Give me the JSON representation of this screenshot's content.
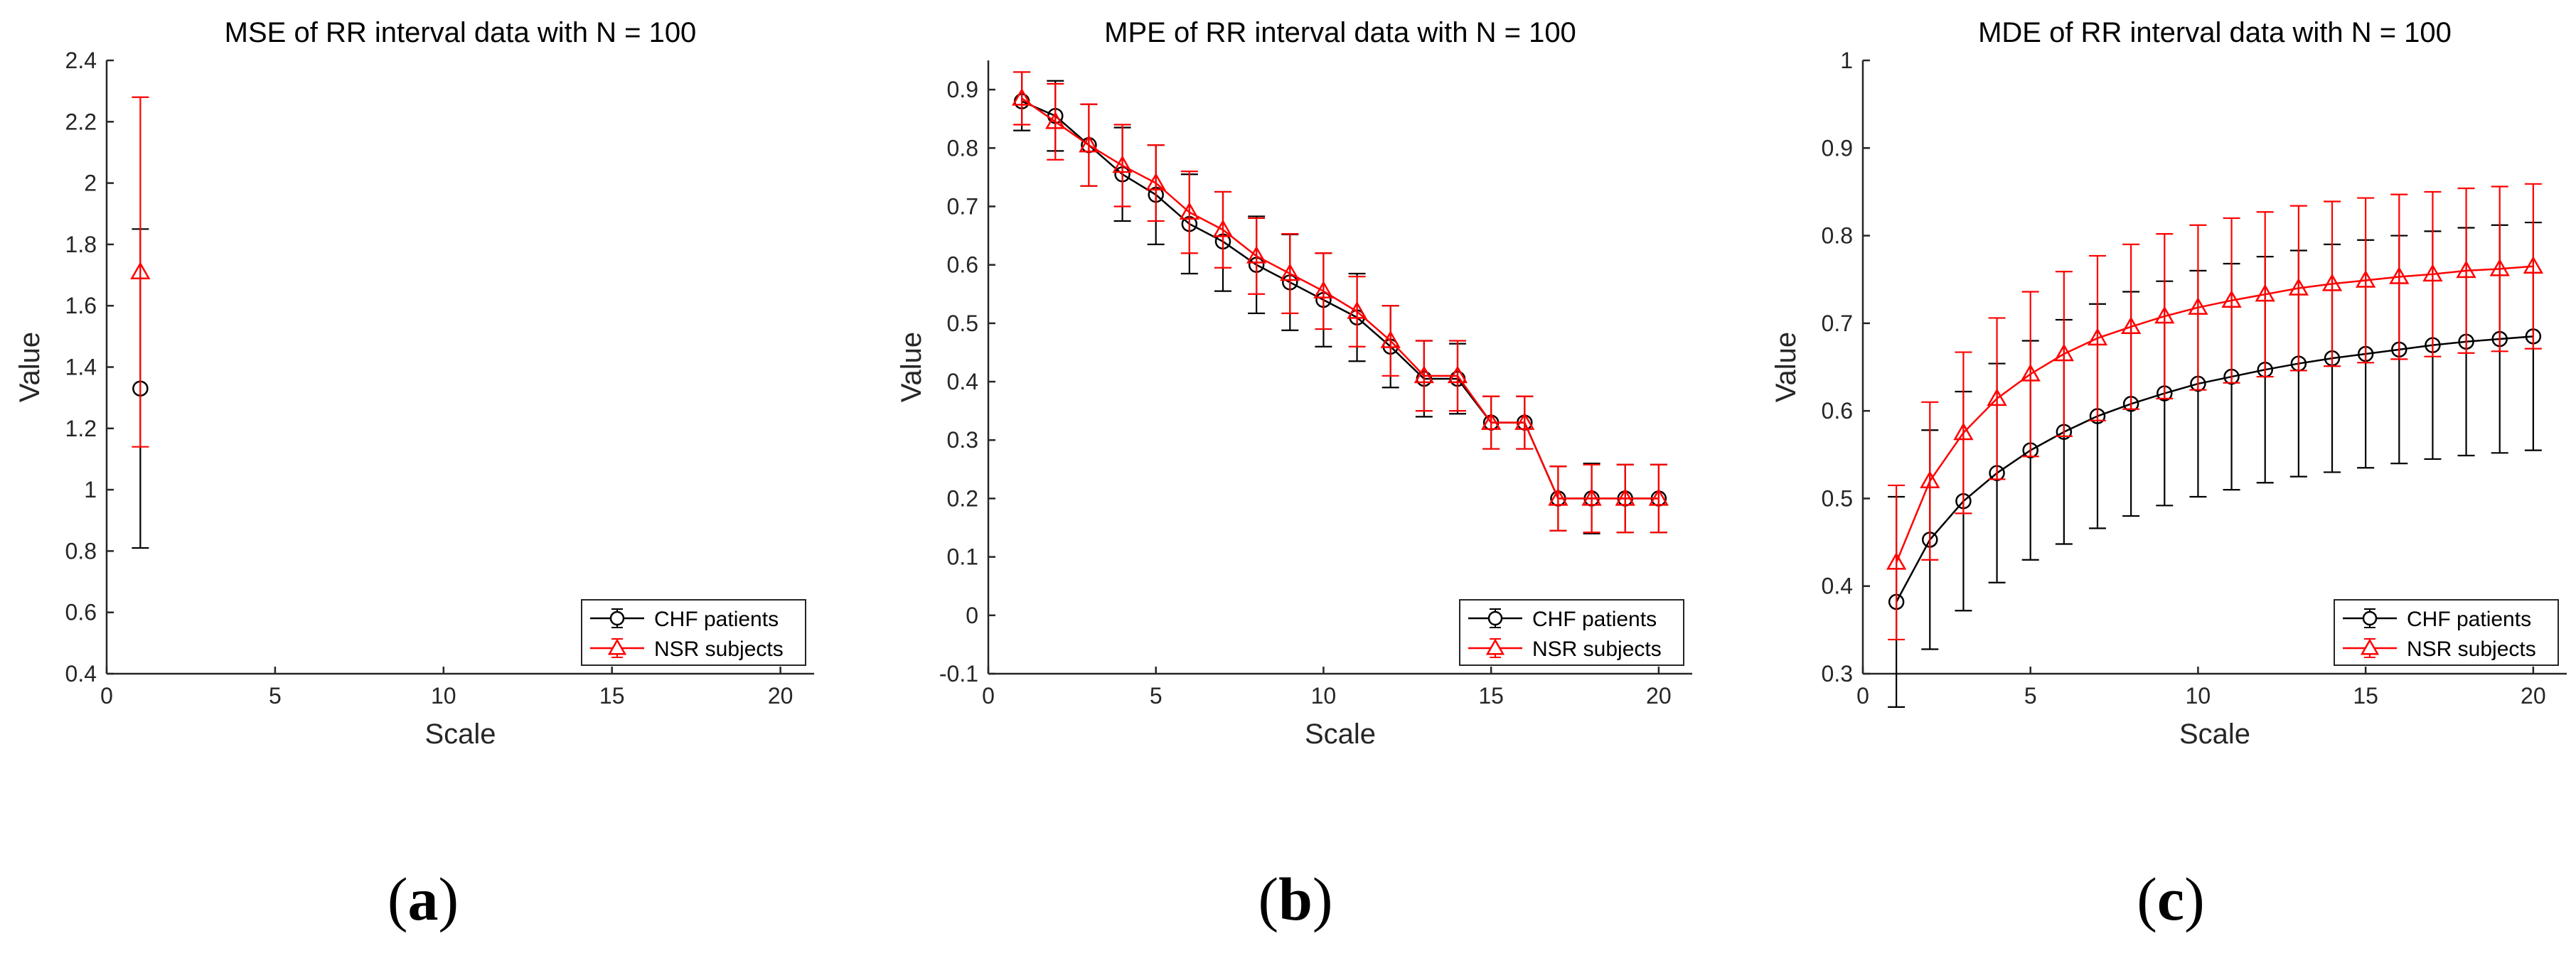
{
  "chart_data": [
    {
      "type": "line",
      "title": "MSE of RR interval data with N = 100",
      "xlabel": "Scale",
      "ylabel": "Value",
      "xlim": [
        0,
        21
      ],
      "ylim": [
        0.4,
        2.4
      ],
      "xticks": [
        0,
        5,
        10,
        15,
        20
      ],
      "xtick_labels": [
        "0",
        "5",
        "10",
        "15",
        "20"
      ],
      "yticks": [
        0.4,
        0.6,
        0.8,
        1,
        1.2,
        1.4,
        1.6,
        1.8,
        2,
        2.2,
        2.4
      ],
      "ytick_labels": [
        "0.4",
        "0.6",
        "0.8",
        "1",
        "1.2",
        "1.4",
        "1.6",
        "1.8",
        "2",
        "2.2",
        "2.4"
      ],
      "legend_position": "bottom-right",
      "series": [
        {
          "name": "CHF patients",
          "color": "#000000",
          "marker": "circle",
          "x": [
            1
          ],
          "values": [
            1.33
          ],
          "err": [
            0.52
          ]
        },
        {
          "name": "NSR subjects",
          "color": "#ff0000",
          "marker": "triangle",
          "x": [
            1
          ],
          "values": [
            1.71
          ],
          "err": [
            0.57
          ]
        }
      ],
      "sub_label": {
        "open": "(",
        "letter": "a",
        "close": ")"
      }
    },
    {
      "type": "line",
      "title": "MPE of RR interval data with N = 100",
      "xlabel": "Scale",
      "ylabel": "Value",
      "xlim": [
        0,
        21
      ],
      "ylim": [
        -0.1,
        0.95
      ],
      "xticks": [
        0,
        5,
        10,
        15,
        20
      ],
      "xtick_labels": [
        "0",
        "5",
        "10",
        "15",
        "20"
      ],
      "yticks": [
        -0.1,
        0,
        0.1,
        0.2,
        0.3,
        0.4,
        0.5,
        0.6,
        0.7,
        0.8,
        0.9
      ],
      "ytick_labels": [
        "-0.1",
        "0",
        "0.1",
        "0.2",
        "0.3",
        "0.4",
        "0.5",
        "0.6",
        "0.7",
        "0.8",
        "0.9"
      ],
      "legend_position": "bottom-right",
      "series": [
        {
          "name": "CHF patients",
          "color": "#000000",
          "marker": "circle",
          "x": [
            1,
            2,
            3,
            4,
            5,
            6,
            7,
            8,
            9,
            10,
            11,
            12,
            13,
            14,
            15,
            16,
            17,
            18,
            19,
            20
          ],
          "values": [
            0.88,
            0.855,
            0.805,
            0.755,
            0.72,
            0.67,
            0.64,
            0.6,
            0.57,
            0.54,
            0.51,
            0.46,
            0.405,
            0.405,
            0.33,
            0.33,
            0.2,
            0.2,
            0.2,
            0.2
          ],
          "err": [
            0.05,
            0.06,
            0.07,
            0.08,
            0.085,
            0.085,
            0.085,
            0.083,
            0.082,
            0.08,
            0.075,
            0.07,
            0.065,
            0.06,
            0.045,
            0.045,
            0.055,
            0.06,
            0.058,
            0.058
          ]
        },
        {
          "name": "NSR subjects",
          "color": "#ff0000",
          "marker": "triangle",
          "x": [
            1,
            2,
            3,
            4,
            5,
            6,
            7,
            8,
            9,
            10,
            11,
            12,
            13,
            14,
            15,
            16,
            17,
            18,
            19,
            20
          ],
          "values": [
            0.885,
            0.845,
            0.805,
            0.77,
            0.74,
            0.69,
            0.66,
            0.615,
            0.585,
            0.555,
            0.52,
            0.47,
            0.41,
            0.41,
            0.33,
            0.33,
            0.2,
            0.2,
            0.2,
            0.2
          ],
          "err": [
            0.045,
            0.065,
            0.07,
            0.07,
            0.065,
            0.07,
            0.065,
            0.065,
            0.068,
            0.065,
            0.06,
            0.06,
            0.06,
            0.06,
            0.045,
            0.045,
            0.055,
            0.058,
            0.058,
            0.058
          ]
        }
      ],
      "sub_label": {
        "open": "(",
        "letter": "b",
        "close": ")"
      }
    },
    {
      "type": "line",
      "title": "MDE of RR interval data with N = 100",
      "xlabel": "Scale",
      "ylabel": "Value",
      "xlim": [
        0,
        21
      ],
      "ylim": [
        0.3,
        1.0
      ],
      "xticks": [
        0,
        5,
        10,
        15,
        20
      ],
      "xtick_labels": [
        "0",
        "5",
        "10",
        "15",
        "20"
      ],
      "yticks": [
        0.3,
        0.4,
        0.5,
        0.6,
        0.7,
        0.8,
        0.9,
        1
      ],
      "ytick_labels": [
        "0.3",
        "0.4",
        "0.5",
        "0.6",
        "0.7",
        "0.8",
        "0.9",
        "1"
      ],
      "legend_position": "bottom-right",
      "series": [
        {
          "name": "CHF patients",
          "color": "#000000",
          "marker": "circle",
          "x": [
            1,
            2,
            3,
            4,
            5,
            6,
            7,
            8,
            9,
            10,
            11,
            12,
            13,
            14,
            15,
            16,
            17,
            18,
            19,
            20
          ],
          "values": [
            0.382,
            0.453,
            0.497,
            0.529,
            0.555,
            0.576,
            0.594,
            0.608,
            0.62,
            0.631,
            0.639,
            0.647,
            0.654,
            0.66,
            0.665,
            0.67,
            0.675,
            0.679,
            0.682,
            0.685
          ],
          "err": [
            0.12,
            0.125,
            0.125,
            0.125,
            0.125,
            0.128,
            0.128,
            0.128,
            0.128,
            0.129,
            0.129,
            0.129,
            0.129,
            0.13,
            0.13,
            0.13,
            0.13,
            0.13,
            0.13,
            0.13
          ]
        },
        {
          "name": "NSR subjects",
          "color": "#ff0000",
          "marker": "triangle",
          "x": [
            1,
            2,
            3,
            4,
            5,
            6,
            7,
            8,
            9,
            10,
            11,
            12,
            13,
            14,
            15,
            16,
            17,
            18,
            19,
            20
          ],
          "values": [
            0.427,
            0.52,
            0.575,
            0.614,
            0.642,
            0.665,
            0.683,
            0.696,
            0.708,
            0.718,
            0.726,
            0.733,
            0.74,
            0.745,
            0.749,
            0.753,
            0.756,
            0.76,
            0.762,
            0.765
          ],
          "err": [
            0.088,
            0.09,
            0.092,
            0.092,
            0.094,
            0.094,
            0.094,
            0.094,
            0.094,
            0.094,
            0.094,
            0.094,
            0.094,
            0.094,
            0.094,
            0.094,
            0.094,
            0.094,
            0.094,
            0.094
          ]
        }
      ],
      "sub_label": {
        "open": "(",
        "letter": "c",
        "close": ")"
      }
    }
  ]
}
